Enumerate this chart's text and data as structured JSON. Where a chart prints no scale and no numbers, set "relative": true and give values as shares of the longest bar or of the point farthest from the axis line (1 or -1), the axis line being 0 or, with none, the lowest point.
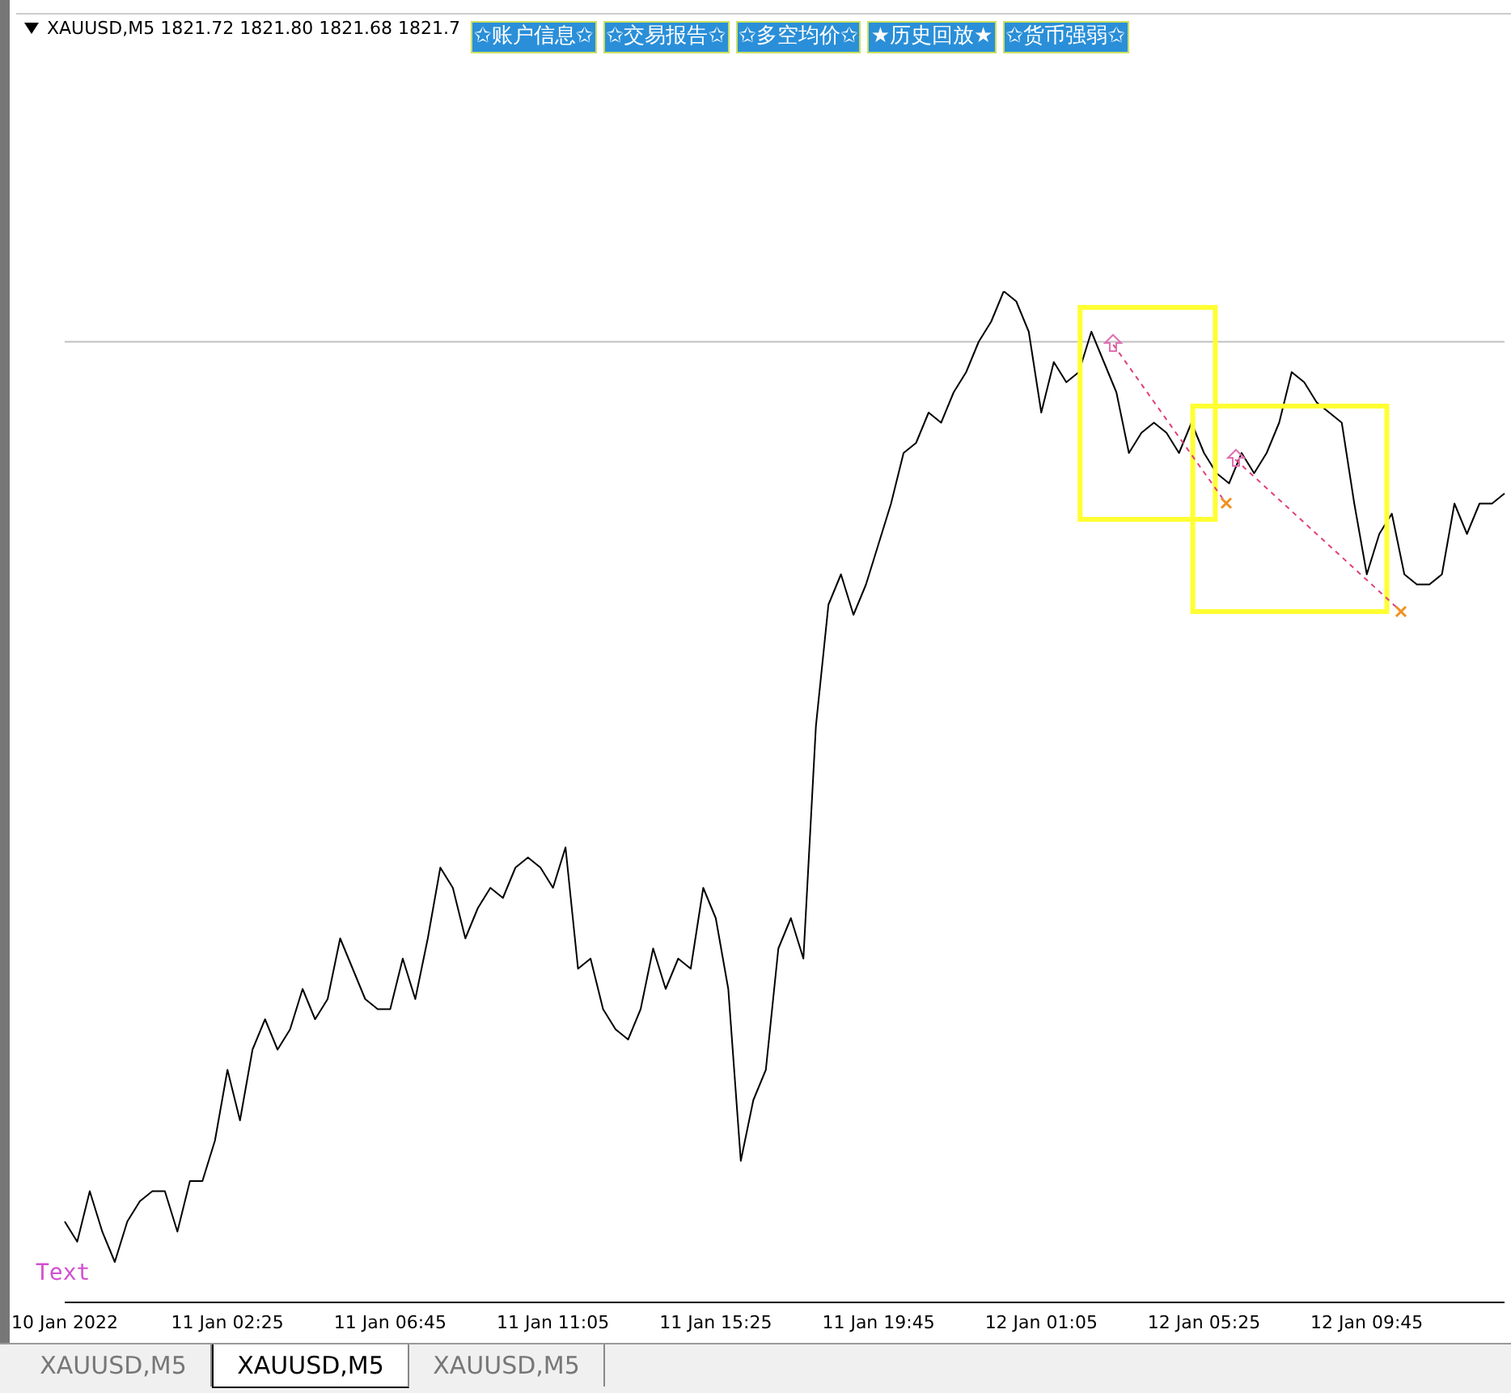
{
  "chart_data": {
    "type": "line",
    "title": "XAUUSD,M5 1821.72 1821.80 1821.68 1821.7",
    "relative": true,
    "categories": [
      "10 Jan 2022",
      null,
      null,
      null,
      null,
      null,
      null,
      null,
      null,
      null,
      null,
      null,
      null,
      "11 Jan 02:25",
      null,
      null,
      null,
      null,
      null,
      null,
      null,
      null,
      null,
      null,
      null,
      null,
      "11 Jan 06:45",
      null,
      null,
      null,
      null,
      null,
      null,
      null,
      null,
      null,
      null,
      null,
      null,
      "11 Jan 11:05",
      null,
      null,
      null,
      null,
      null,
      null,
      null,
      null,
      null,
      null,
      null,
      null,
      "11 Jan 15:25",
      null,
      null,
      null,
      null,
      null,
      null,
      null,
      null,
      null,
      null,
      null,
      null,
      "11 Jan 19:45",
      null,
      null,
      null,
      null,
      null,
      null,
      null,
      null,
      null,
      null,
      null,
      null,
      "12 Jan 01:05",
      null,
      null,
      null,
      null,
      null,
      null,
      null,
      null,
      null,
      null,
      null,
      null,
      "12 Jan 05:25",
      null,
      null,
      null,
      null,
      null,
      null,
      null,
      null,
      null,
      null,
      null,
      null,
      "12 Jan 09:45",
      null,
      null,
      null,
      null,
      null,
      null,
      null,
      null,
      null,
      null,
      null
    ],
    "series": [
      {
        "color": "#000000",
        "values": [
          0.08,
          0.06,
          0.11,
          0.07,
          0.04,
          0.08,
          0.1,
          0.11,
          0.11,
          0.07,
          0.12,
          0.12,
          0.16,
          0.23,
          0.18,
          0.25,
          0.28,
          0.25,
          0.27,
          0.31,
          0.28,
          0.3,
          0.36,
          0.33,
          0.3,
          0.29,
          0.29,
          0.34,
          0.3,
          0.36,
          0.43,
          0.41,
          0.36,
          0.39,
          0.41,
          0.4,
          0.43,
          0.44,
          0.43,
          0.41,
          0.45,
          0.33,
          0.34,
          0.29,
          0.27,
          0.26,
          0.29,
          0.35,
          0.31,
          0.34,
          0.33,
          0.41,
          0.38,
          0.31,
          0.14,
          0.2,
          0.23,
          0.35,
          0.38,
          0.34,
          0.57,
          0.69,
          0.72,
          0.68,
          0.71,
          0.75,
          0.79,
          0.84,
          0.85,
          0.88,
          0.87,
          0.9,
          0.92,
          0.95,
          0.97,
          1,
          0.99,
          0.96,
          0.88,
          0.93,
          0.91,
          0.92,
          0.96,
          0.93,
          0.9,
          0.84,
          0.86,
          0.87,
          0.86,
          0.84,
          0.87,
          0.84,
          0.82,
          0.81,
          0.84,
          0.82,
          0.84,
          0.87,
          0.92,
          0.91,
          0.89,
          0.88,
          0.87,
          0.79,
          0.72,
          0.76,
          0.78,
          0.72,
          0.71,
          0.71,
          0.72,
          0.79,
          0.76,
          0.79,
          0.79,
          0.8
        ]
      }
    ],
    "ref_lines": [
      {
        "axis": "y",
        "value": 0.95,
        "color": "#c0c0c0"
      }
    ],
    "annotations": [
      "✩账户信息✩",
      "✩交易报告✩",
      "✩多空均价✩",
      "★历史回放★",
      "✩货币强弱✩",
      "XAUUSD,M5",
      "XAUUSD,M5",
      "XAUUSD,M5",
      "Text"
    ]
  }
}
